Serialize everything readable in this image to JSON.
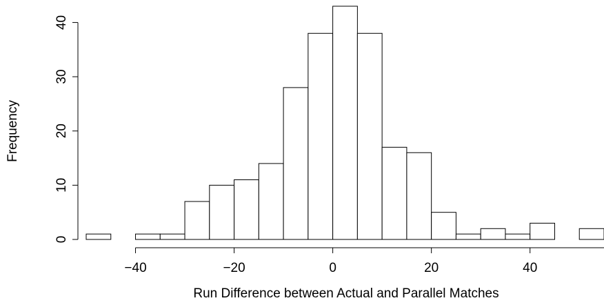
{
  "chart_data": {
    "type": "bar",
    "title": "",
    "xlabel": "Run Difference between Actual and Parallel Matches",
    "ylabel": "Frequency",
    "bin_edges": [
      -50,
      -45,
      -40,
      -35,
      -30,
      -25,
      -20,
      -15,
      -10,
      -5,
      0,
      5,
      10,
      15,
      20,
      25,
      30,
      35,
      40,
      45,
      50,
      55
    ],
    "values": [
      1,
      0,
      1,
      1,
      7,
      10,
      11,
      14,
      28,
      38,
      43,
      38,
      17,
      16,
      5,
      1,
      2,
      1,
      3,
      0,
      2
    ],
    "xlim": [
      -50,
      55
    ],
    "ylim": [
      0,
      43
    ],
    "x_ticks": [
      -40,
      -20,
      0,
      20,
      40
    ],
    "x_tick_labels": [
      "−40",
      "−20",
      "0",
      "20",
      "40"
    ],
    "y_ticks": [
      0,
      10,
      20,
      30,
      40
    ],
    "y_tick_labels": [
      "0",
      "10",
      "20",
      "30",
      "40"
    ],
    "grid": false,
    "bar_fill": "#ffffff",
    "bar_stroke": "#000000"
  }
}
